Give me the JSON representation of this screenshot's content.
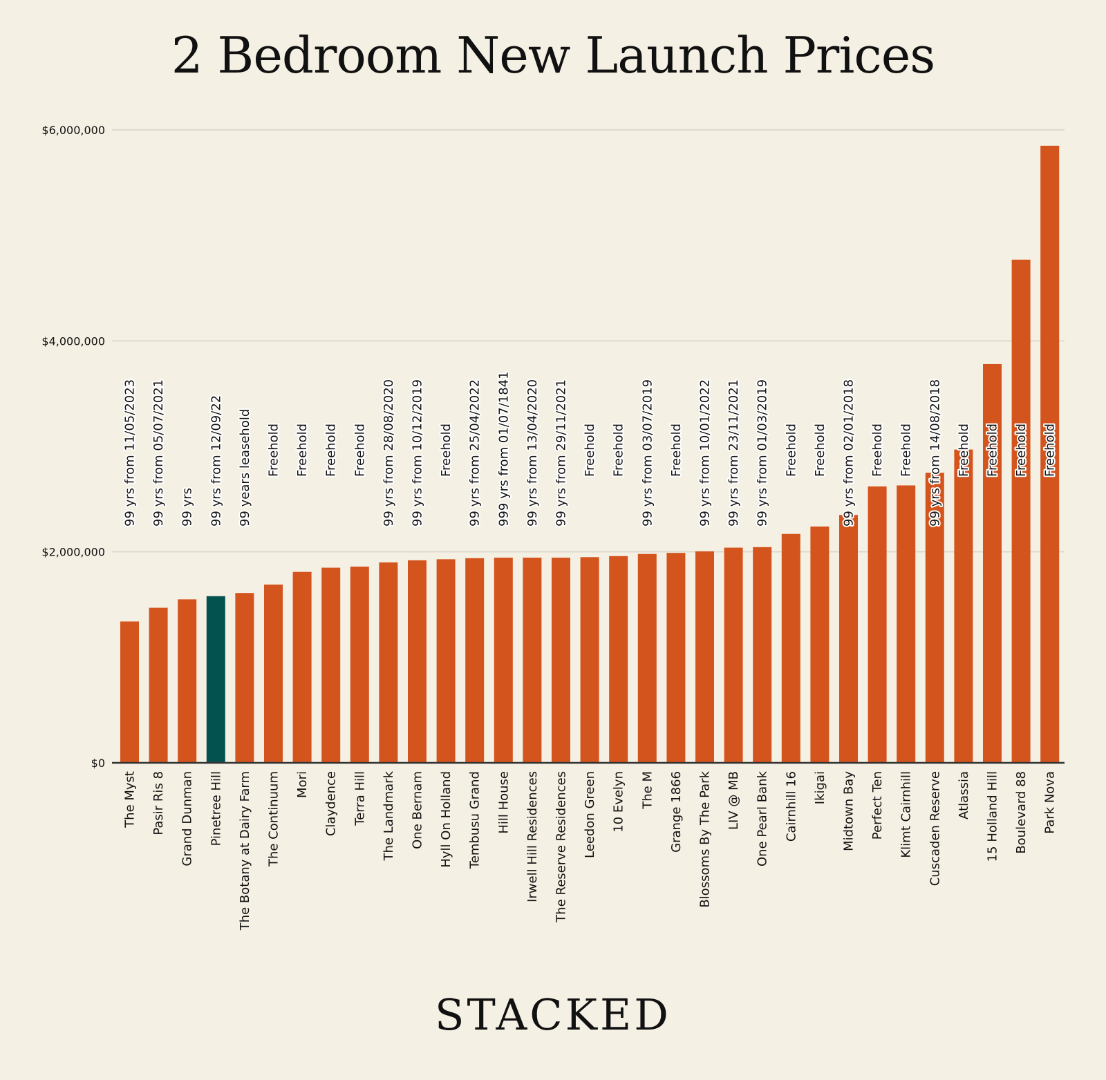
{
  "colors": {
    "background": "#f5f0e4",
    "bar": "#d4541d",
    "highlight_bar": "#04524f",
    "gridline": "#d9d3c5",
    "axis": "#333333"
  },
  "brand": {
    "logo_text": "STACKED"
  },
  "chart_data": {
    "type": "bar",
    "title": "2 Bedroom New Launch Prices",
    "xlabel": "",
    "ylabel": "",
    "ylim": [
      0,
      6000000
    ],
    "yticks": [
      0,
      2000000,
      4000000,
      6000000
    ],
    "ytick_labels": [
      "$0",
      "$2,000,000",
      "$4,000,000",
      "$6,000,000"
    ],
    "grid": true,
    "highlight_category": "Pinetree Hill",
    "categories": [
      "The Myst",
      "Pasir Ris 8",
      "Grand Dunman",
      "Pinetree Hill",
      "The Botany at Dairy Farm",
      "The Continuum",
      "Mori",
      "Claydence",
      "Terra Hill",
      "The Landmark",
      "One Bernam",
      "Hyll On Holland",
      "Tembusu Grand",
      "Hill House",
      "Irwell Hill Residences",
      "The Reserve Residences",
      "Leedon Green",
      "10 Evelyn",
      "The M",
      "Grange 1866",
      "Blossoms By The Park",
      "LIV @ MB",
      "One Pearl Bank",
      "Cairnhill 16",
      "Ikigai",
      "Midtown Bay",
      "Perfect Ten",
      "Klimt Cairnhill",
      "Cuscaden Reserve",
      "Atlassia",
      "15 Holland Hill",
      "Boulevard 88",
      "Park Nova"
    ],
    "values": [
      1340000,
      1470000,
      1550000,
      1580000,
      1610000,
      1690000,
      1810000,
      1850000,
      1860000,
      1900000,
      1920000,
      1930000,
      1940000,
      1945000,
      1945000,
      1945000,
      1950000,
      1960000,
      1980000,
      1990000,
      2005000,
      2040000,
      2045000,
      2170000,
      2240000,
      2350000,
      2620000,
      2630000,
      2750000,
      2970000,
      3780000,
      4770000,
      5850000
    ],
    "annotations": [
      "99 yrs from 11/05/2023",
      "99 yrs from 05/07/2021",
      "99 yrs",
      "99 yrs from 12/09/22",
      "99 years leasehold",
      "Freehold",
      "Freehold",
      "Freehold",
      "Freehold",
      "99 yrs from 28/08/2020",
      "99 yrs from 10/12/2019",
      "Freehold",
      "99 yrs from 25/04/2022",
      "999 yrs from 01/07/1841",
      "99 yrs from 13/04/2020",
      "99 yrs from 29/11/2021",
      "Freehold",
      "Freehold",
      "99 yrs from 03/07/2019",
      "Freehold",
      "99 yrs from 10/01/2022",
      "99 yrs from 23/11/2021",
      "99 yrs from 01/03/2019",
      "Freehold",
      "Freehold",
      "99 yrs from 02/01/2018",
      "Freehold",
      "Freehold",
      "99 yrs from 14/08/2018",
      "Freehold",
      "Freehold",
      "Freehold",
      "Freehold"
    ]
  }
}
